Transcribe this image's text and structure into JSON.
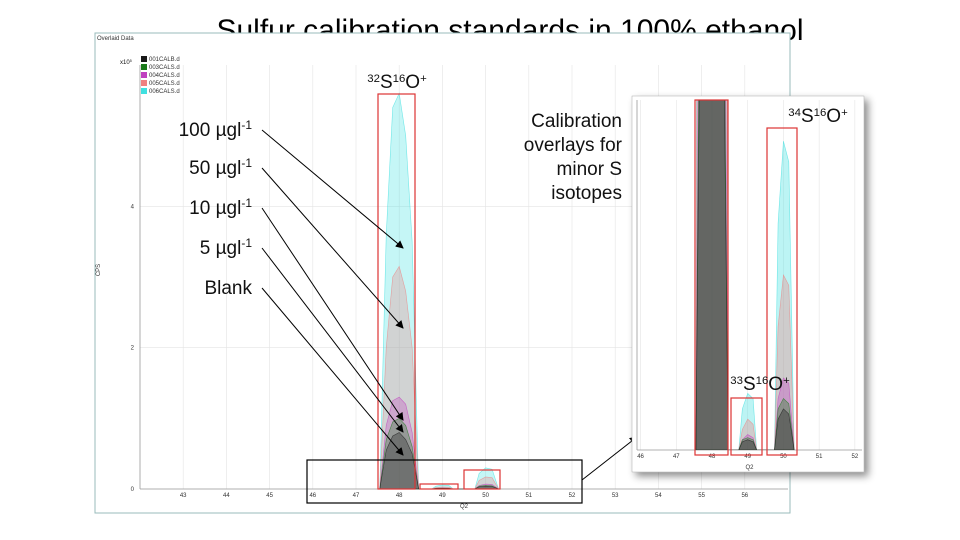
{
  "slide": {
    "title": "Sulfur calibration standards in 100% ethanol",
    "concentration_labels": [
      {
        "text": "100 µgl",
        "sup": "-1"
      },
      {
        "text": "50 µgl",
        "sup": "-1"
      },
      {
        "text": "10 µgl",
        "sup": "-1"
      },
      {
        "text": "5 µgl",
        "sup": "-1"
      },
      {
        "text": "Blank"
      }
    ],
    "peak_labels": [
      [
        {
          "sup": "32"
        },
        {
          "text": "S"
        },
        {
          "sup": "16"
        },
        {
          "text": "O"
        },
        {
          "sup": "+"
        }
      ],
      [
        {
          "sup": "33"
        },
        {
          "text": "S"
        },
        {
          "sup": "16"
        },
        {
          "text": "O"
        },
        {
          "sup": "+"
        }
      ],
      [
        {
          "sup": "34"
        },
        {
          "text": "S"
        },
        {
          "sup": "16"
        },
        {
          "text": "O"
        },
        {
          "sup": "+"
        }
      ]
    ],
    "inset_caption": [
      "Calibration",
      "overlays for",
      "minor S",
      "isotopes"
    ]
  },
  "chart_data": [
    {
      "type": "area",
      "panel_title": "Overlaid Data",
      "y_scale_label": [
        {
          "text": "x10"
        },
        {
          "sup": "5"
        }
      ],
      "xlabel": "Q2",
      "ylabel": "CPS",
      "xlim": [
        42,
        57
      ],
      "ylim": [
        0,
        6
      ],
      "xticks": [
        43,
        44,
        45,
        46,
        47,
        48,
        49,
        50,
        51,
        52,
        53,
        54,
        55,
        56
      ],
      "yticks": [
        0,
        2,
        4
      ],
      "grid": true,
      "x": [
        47.55,
        47.7,
        47.85,
        48.0,
        48.15,
        48.3,
        48.45,
        48.75,
        48.85,
        49.0,
        49.15,
        49.25,
        49.75,
        49.85,
        50.0,
        50.15,
        50.3
      ],
      "series": [
        {
          "name": "001CALB.d",
          "color": "#1a1a1a",
          "values": [
            0,
            0.55,
            0.75,
            0.8,
            0.7,
            0.5,
            0,
            0,
            0.008,
            0.01,
            0.008,
            0,
            0,
            0.03,
            0.04,
            0.035,
            0
          ]
        },
        {
          "name": "003CALS.d",
          "color": "#1b7a1b",
          "values": [
            0,
            0.7,
            0.95,
            1.0,
            0.9,
            0.6,
            0,
            0,
            0.01,
            0.012,
            0.01,
            0,
            0,
            0.04,
            0.05,
            0.045,
            0
          ]
        },
        {
          "name": "004CALS.d",
          "color": "#c040c0",
          "values": [
            0,
            0.9,
            1.25,
            1.3,
            1.2,
            0.8,
            0,
            0,
            0.01,
            0.015,
            0.012,
            0,
            0,
            0.05,
            0.07,
            0.065,
            0
          ]
        },
        {
          "name": "005CALS.d",
          "color": "#f08080",
          "values": [
            0,
            2.0,
            3.0,
            3.15,
            2.8,
            2.0,
            0,
            0,
            0.02,
            0.03,
            0.025,
            0,
            0,
            0.12,
            0.17,
            0.16,
            0
          ]
        },
        {
          "name": "006CALS.d",
          "color": "#40e0e0",
          "values": [
            0,
            3.6,
            5.4,
            5.6,
            5.0,
            3.5,
            0,
            0,
            0.04,
            0.055,
            0.05,
            0,
            0,
            0.22,
            0.3,
            0.28,
            0
          ]
        }
      ]
    },
    {
      "type": "area",
      "xlabel": "Q2",
      "xlim": [
        45.9,
        52.2
      ],
      "ylim": [
        0,
        0.34
      ],
      "xticks": [
        46,
        47,
        48,
        49,
        50,
        51,
        52
      ],
      "grid": true
    }
  ]
}
